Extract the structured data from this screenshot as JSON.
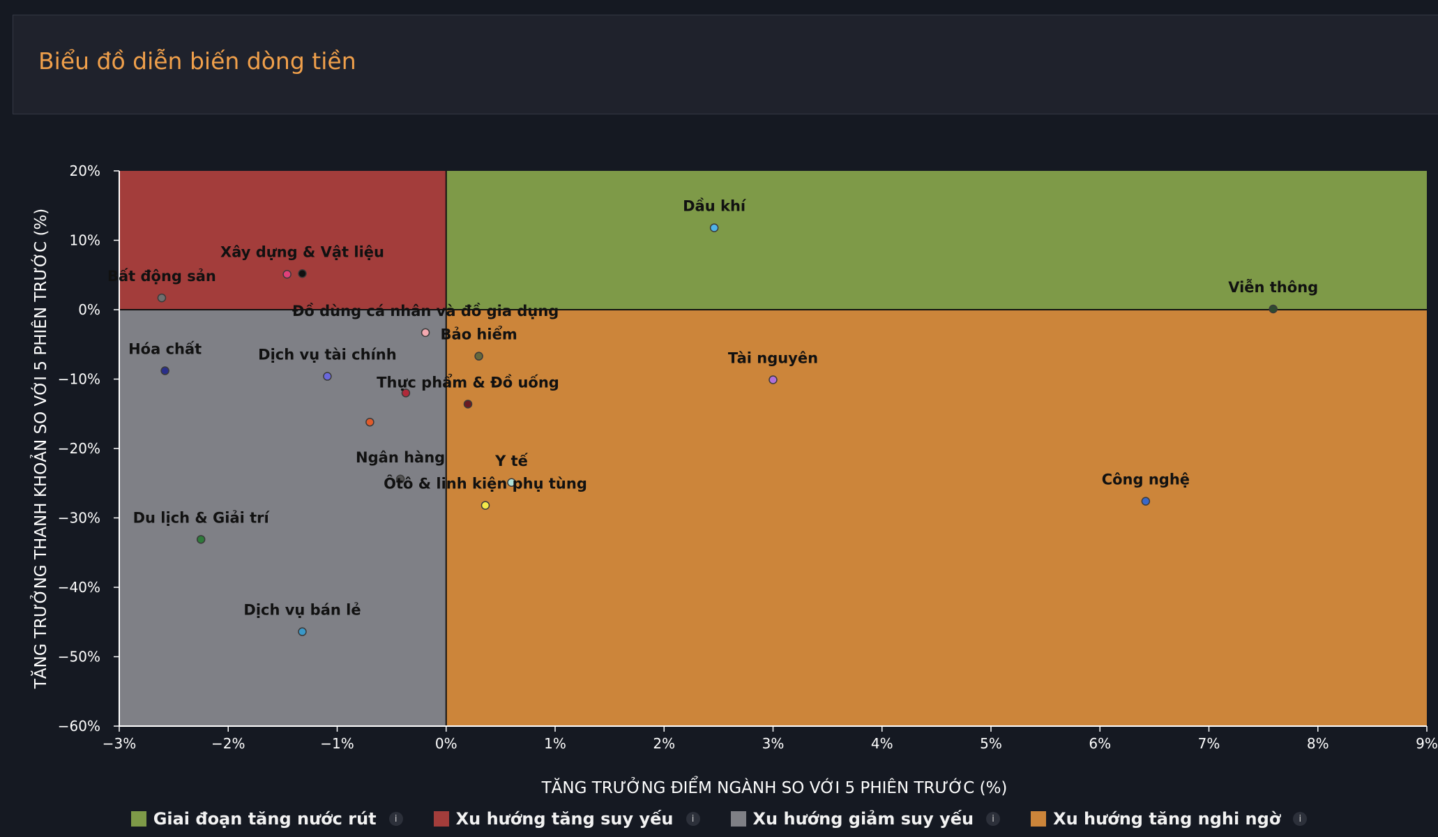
{
  "header": {
    "title": "Biểu đồ diễn biến dòng tiền"
  },
  "chart_data": {
    "type": "scatter",
    "xlabel": "TĂNG TRƯỞNG ĐIỂM NGÀNH SO VỚI 5 PHIÊN TRƯỚC (%)",
    "ylabel": "TĂNG TRƯỞNG THANH KHOẢN SO VỚI 5 PHIÊN TRƯỚC (%)",
    "xlim": [
      -3,
      9
    ],
    "ylim": [
      -60,
      20
    ],
    "xticks": [
      -3,
      -2,
      -1,
      0,
      1,
      2,
      3,
      4,
      5,
      6,
      7,
      8,
      9
    ],
    "yticks": [
      20,
      10,
      0,
      -10,
      -20,
      -30,
      -40,
      -50,
      -60
    ],
    "xtick_labels": [
      "−3%",
      "−2%",
      "−1%",
      "0%",
      "1%",
      "2%",
      "3%",
      "4%",
      "5%",
      "6%",
      "7%",
      "8%",
      "9%"
    ],
    "ytick_labels": [
      "20%",
      "10%",
      "0%",
      "−10%",
      "−20%",
      "−30%",
      "−40%",
      "−50%",
      "−60%"
    ],
    "quadrants": [
      {
        "name": "Giai đoạn tăng nước rút",
        "color": "#7e9a48",
        "region": "top-right"
      },
      {
        "name": "Xu hướng tăng suy yếu",
        "color": "#a33d3b",
        "region": "top-left"
      },
      {
        "name": "Xu hướng giảm suy yếu",
        "color": "#7f8086",
        "region": "bottom-left"
      },
      {
        "name": "Xu hướng tăng nghi ngờ",
        "color": "#cc853a",
        "region": "bottom-right"
      }
    ],
    "points": [
      {
        "label": "Dầu khí",
        "x": 2.46,
        "y": 11.8,
        "color": "#4fb3e8"
      },
      {
        "label": "Viễn thông",
        "x": 7.59,
        "y": 0.1,
        "color": "#2e4a30"
      },
      {
        "label": "Xây dựng & Vật liệu",
        "x": -1.32,
        "y": 5.2,
        "color": "#111111"
      },
      {
        "label": "",
        "x": -1.46,
        "y": 5.1,
        "color": "#e0407a"
      },
      {
        "label": "Bất động sản",
        "x": -2.61,
        "y": 1.7,
        "color": "#707070"
      },
      {
        "label": "Đồ dùng cá nhân và đồ gia dụng",
        "x": -0.19,
        "y": -3.3,
        "color": "#f4a9b0"
      },
      {
        "label": "Bảo hiểm",
        "x": 0.3,
        "y": -6.7,
        "color": "#66683c"
      },
      {
        "label": "Hóa chất",
        "x": -2.58,
        "y": -8.8,
        "color": "#2a2f8a"
      },
      {
        "label": "Dịch vụ tài chính",
        "x": -1.09,
        "y": -9.6,
        "color": "#6a68dc"
      },
      {
        "label": "Tài nguyên",
        "x": 3.0,
        "y": -10.1,
        "color": "#b070d8"
      },
      {
        "label": "",
        "x": -0.37,
        "y": -12.0,
        "color": "#b02a3a"
      },
      {
        "label": "Thực phẩm & Đồ uống",
        "x": 0.2,
        "y": -13.6,
        "color": "#6a1a22"
      },
      {
        "label": "",
        "x": -0.7,
        "y": -16.2,
        "color": "#e05a2a"
      },
      {
        "label": "Ngân hàng",
        "x": -0.42,
        "y": -24.4,
        "color": "#555555"
      },
      {
        "label": "Y tế",
        "x": 0.6,
        "y": -24.9,
        "color": "#b0e0d8"
      },
      {
        "label": "Ôtô & linh kiện phụ tùng",
        "x": 0.36,
        "y": -28.2,
        "color": "#f3ea4a"
      },
      {
        "label": "Công nghệ",
        "x": 6.42,
        "y": -27.6,
        "color": "#3a68c8"
      },
      {
        "label": "Du lịch & Giải trí",
        "x": -2.25,
        "y": -33.1,
        "color": "#2e7a3a"
      },
      {
        "label": "Dịch vụ bán lẻ",
        "x": -1.32,
        "y": -46.4,
        "color": "#3a98c8"
      }
    ],
    "legend_position": "bottom"
  },
  "legend": {
    "items": [
      {
        "label": "Giai đoạn tăng nước rút",
        "color": "#7e9a48"
      },
      {
        "label": "Xu hướng tăng suy yếu",
        "color": "#a33d3b"
      },
      {
        "label": "Xu hướng giảm suy yếu",
        "color": "#7f8086"
      },
      {
        "label": "Xu hướng tăng nghi ngờ",
        "color": "#cc853a"
      }
    ],
    "info_glyph": "i"
  }
}
